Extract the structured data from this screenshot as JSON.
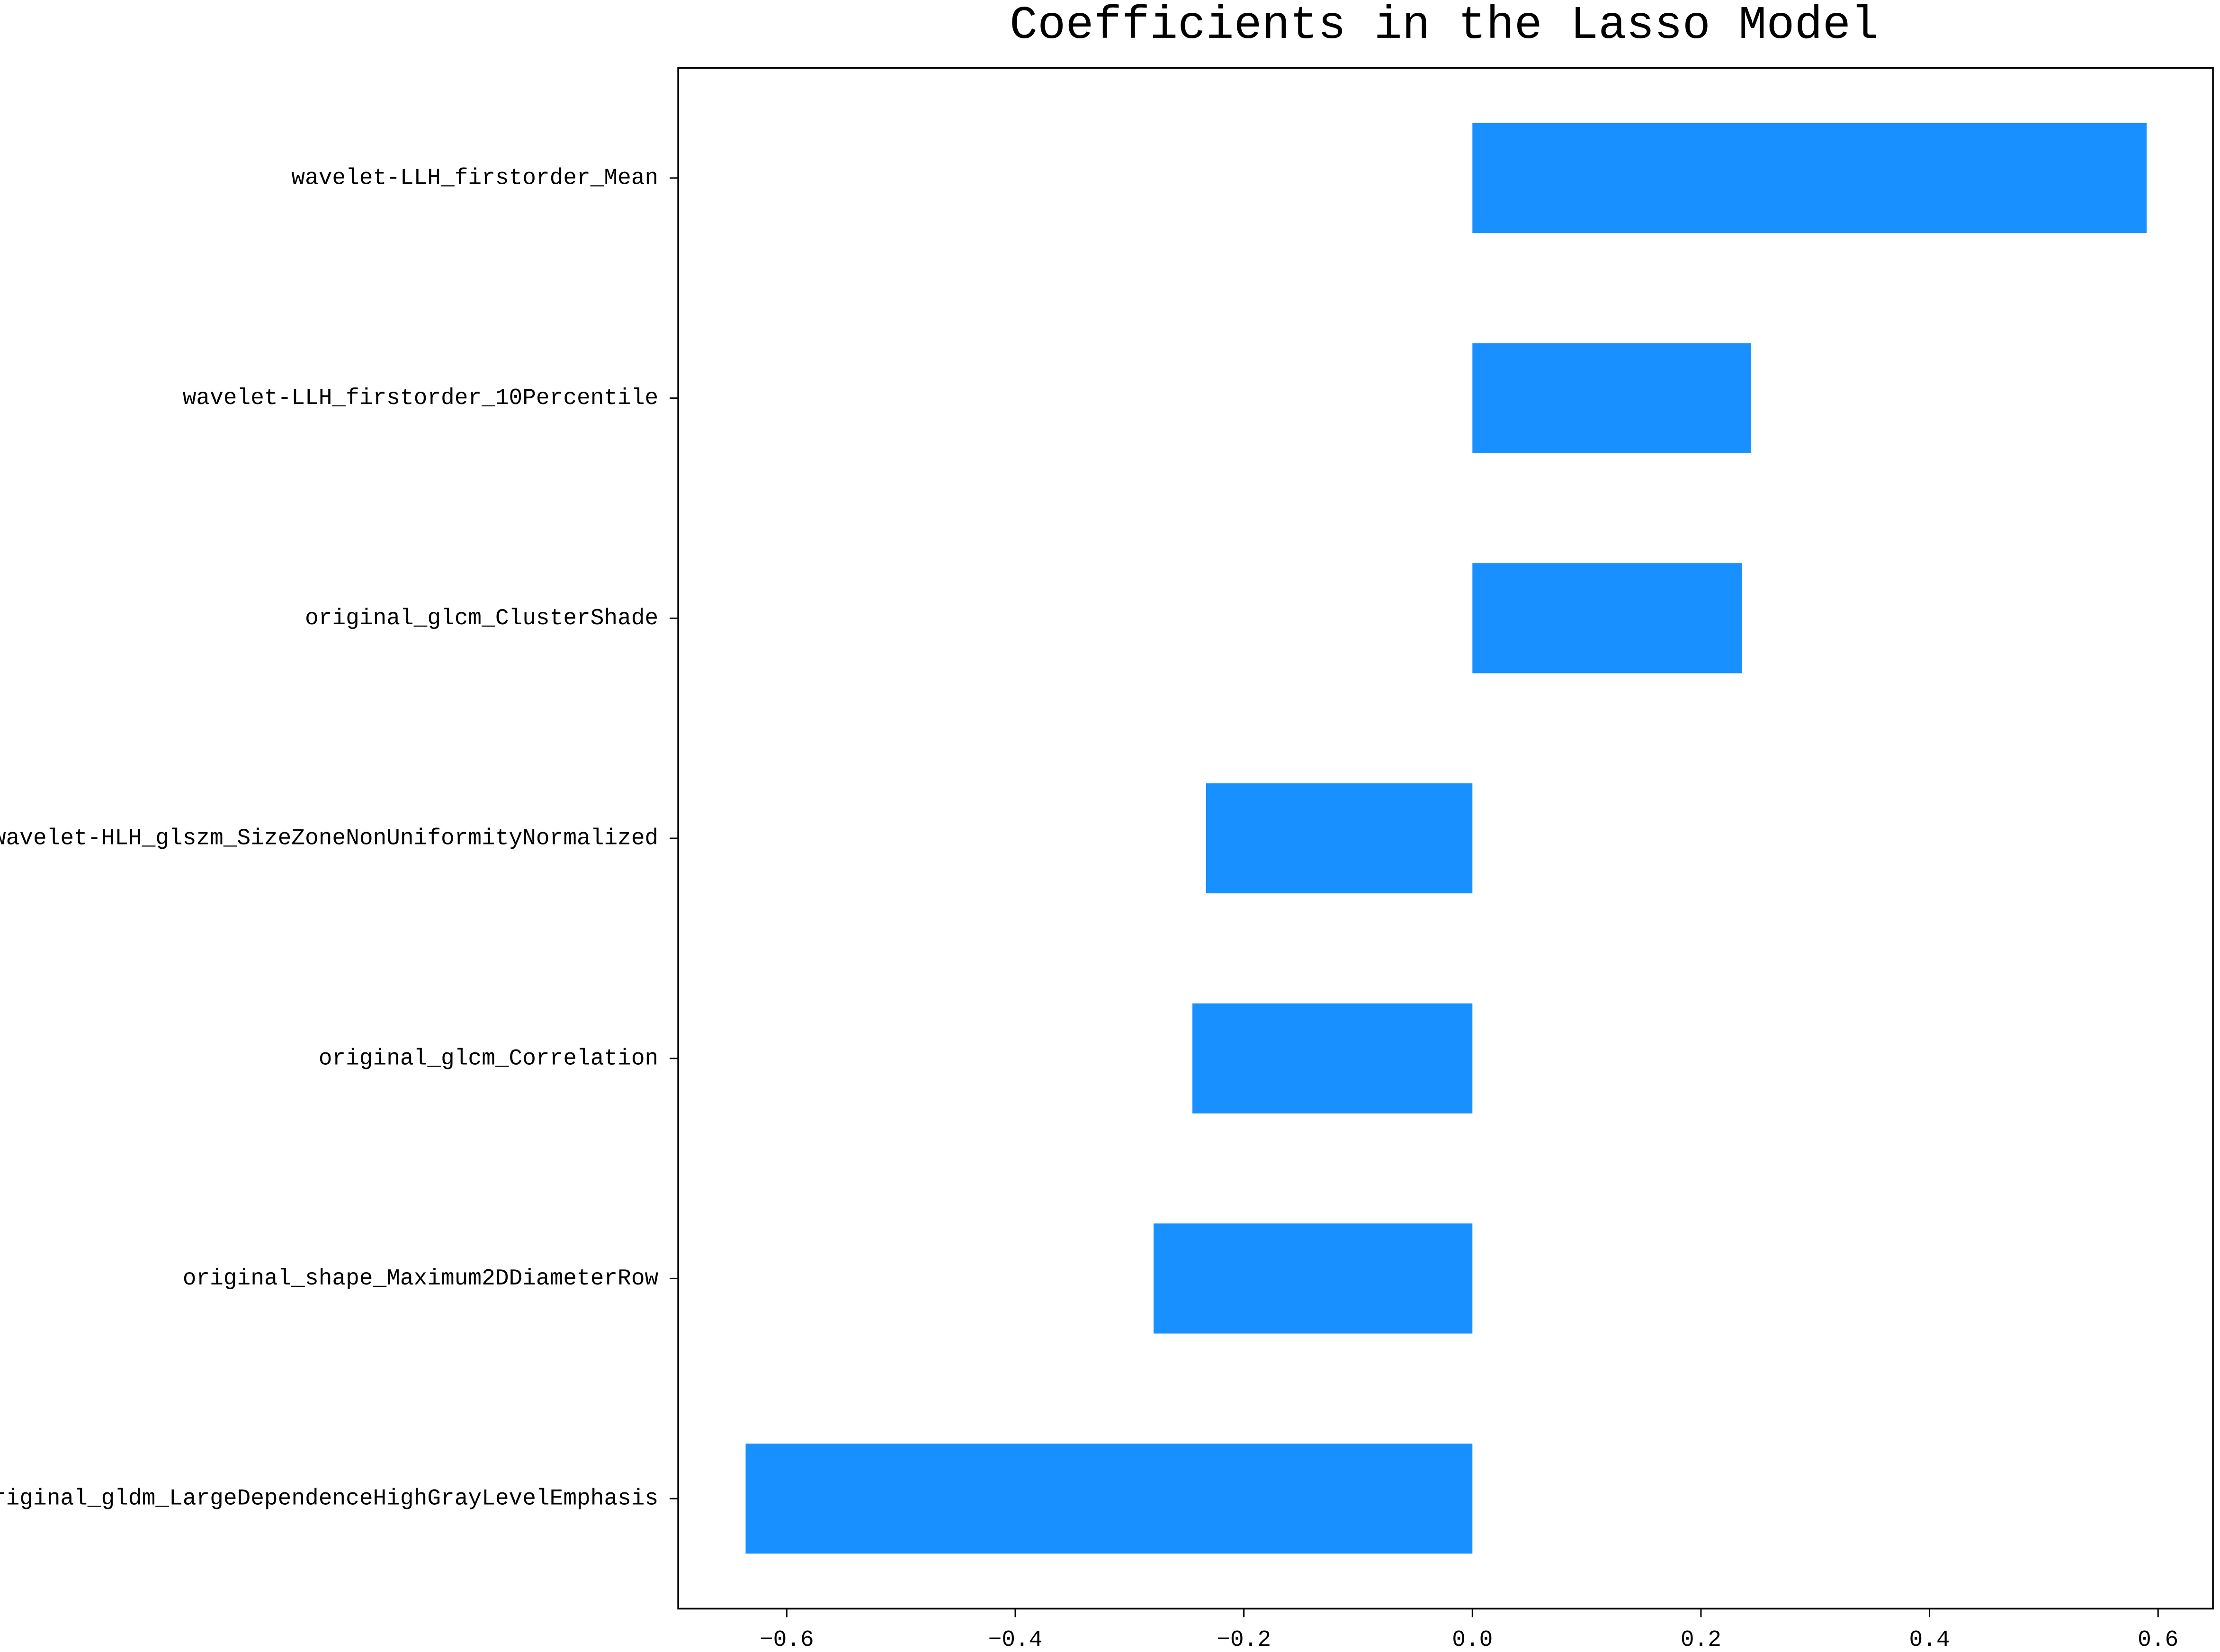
{
  "chart_data": {
    "type": "barh",
    "title": "Coefficients in the Lasso Model",
    "categories": [
      "wavelet-LLH_firstorder_Mean",
      "wavelet-LLH_firstorder_10Percentile",
      "original_glcm_ClusterShade",
      "wavelet-HLH_glszm_SizeZoneNonUniformityNormalized",
      "original_glcm_Correlation",
      "original_shape_Maximum2DDiameterRow",
      "original_gldm_LargeDependenceHighGrayLevelEmphasis"
    ],
    "values": [
      0.59,
      0.244,
      0.236,
      -0.233,
      -0.245,
      -0.279,
      -0.636
    ],
    "color": "#1890ff",
    "xlim": [
      -0.695,
      0.648
    ],
    "xticks": [
      {
        "value": -0.6,
        "label": "−0.6"
      },
      {
        "value": -0.4,
        "label": "−0.4"
      },
      {
        "value": -0.2,
        "label": "−0.2"
      },
      {
        "value": 0.0,
        "label": "0.0"
      },
      {
        "value": 0.2,
        "label": "0.2"
      },
      {
        "value": 0.4,
        "label": "0.4"
      },
      {
        "value": 0.6,
        "label": "0.6"
      }
    ],
    "grid": false
  }
}
